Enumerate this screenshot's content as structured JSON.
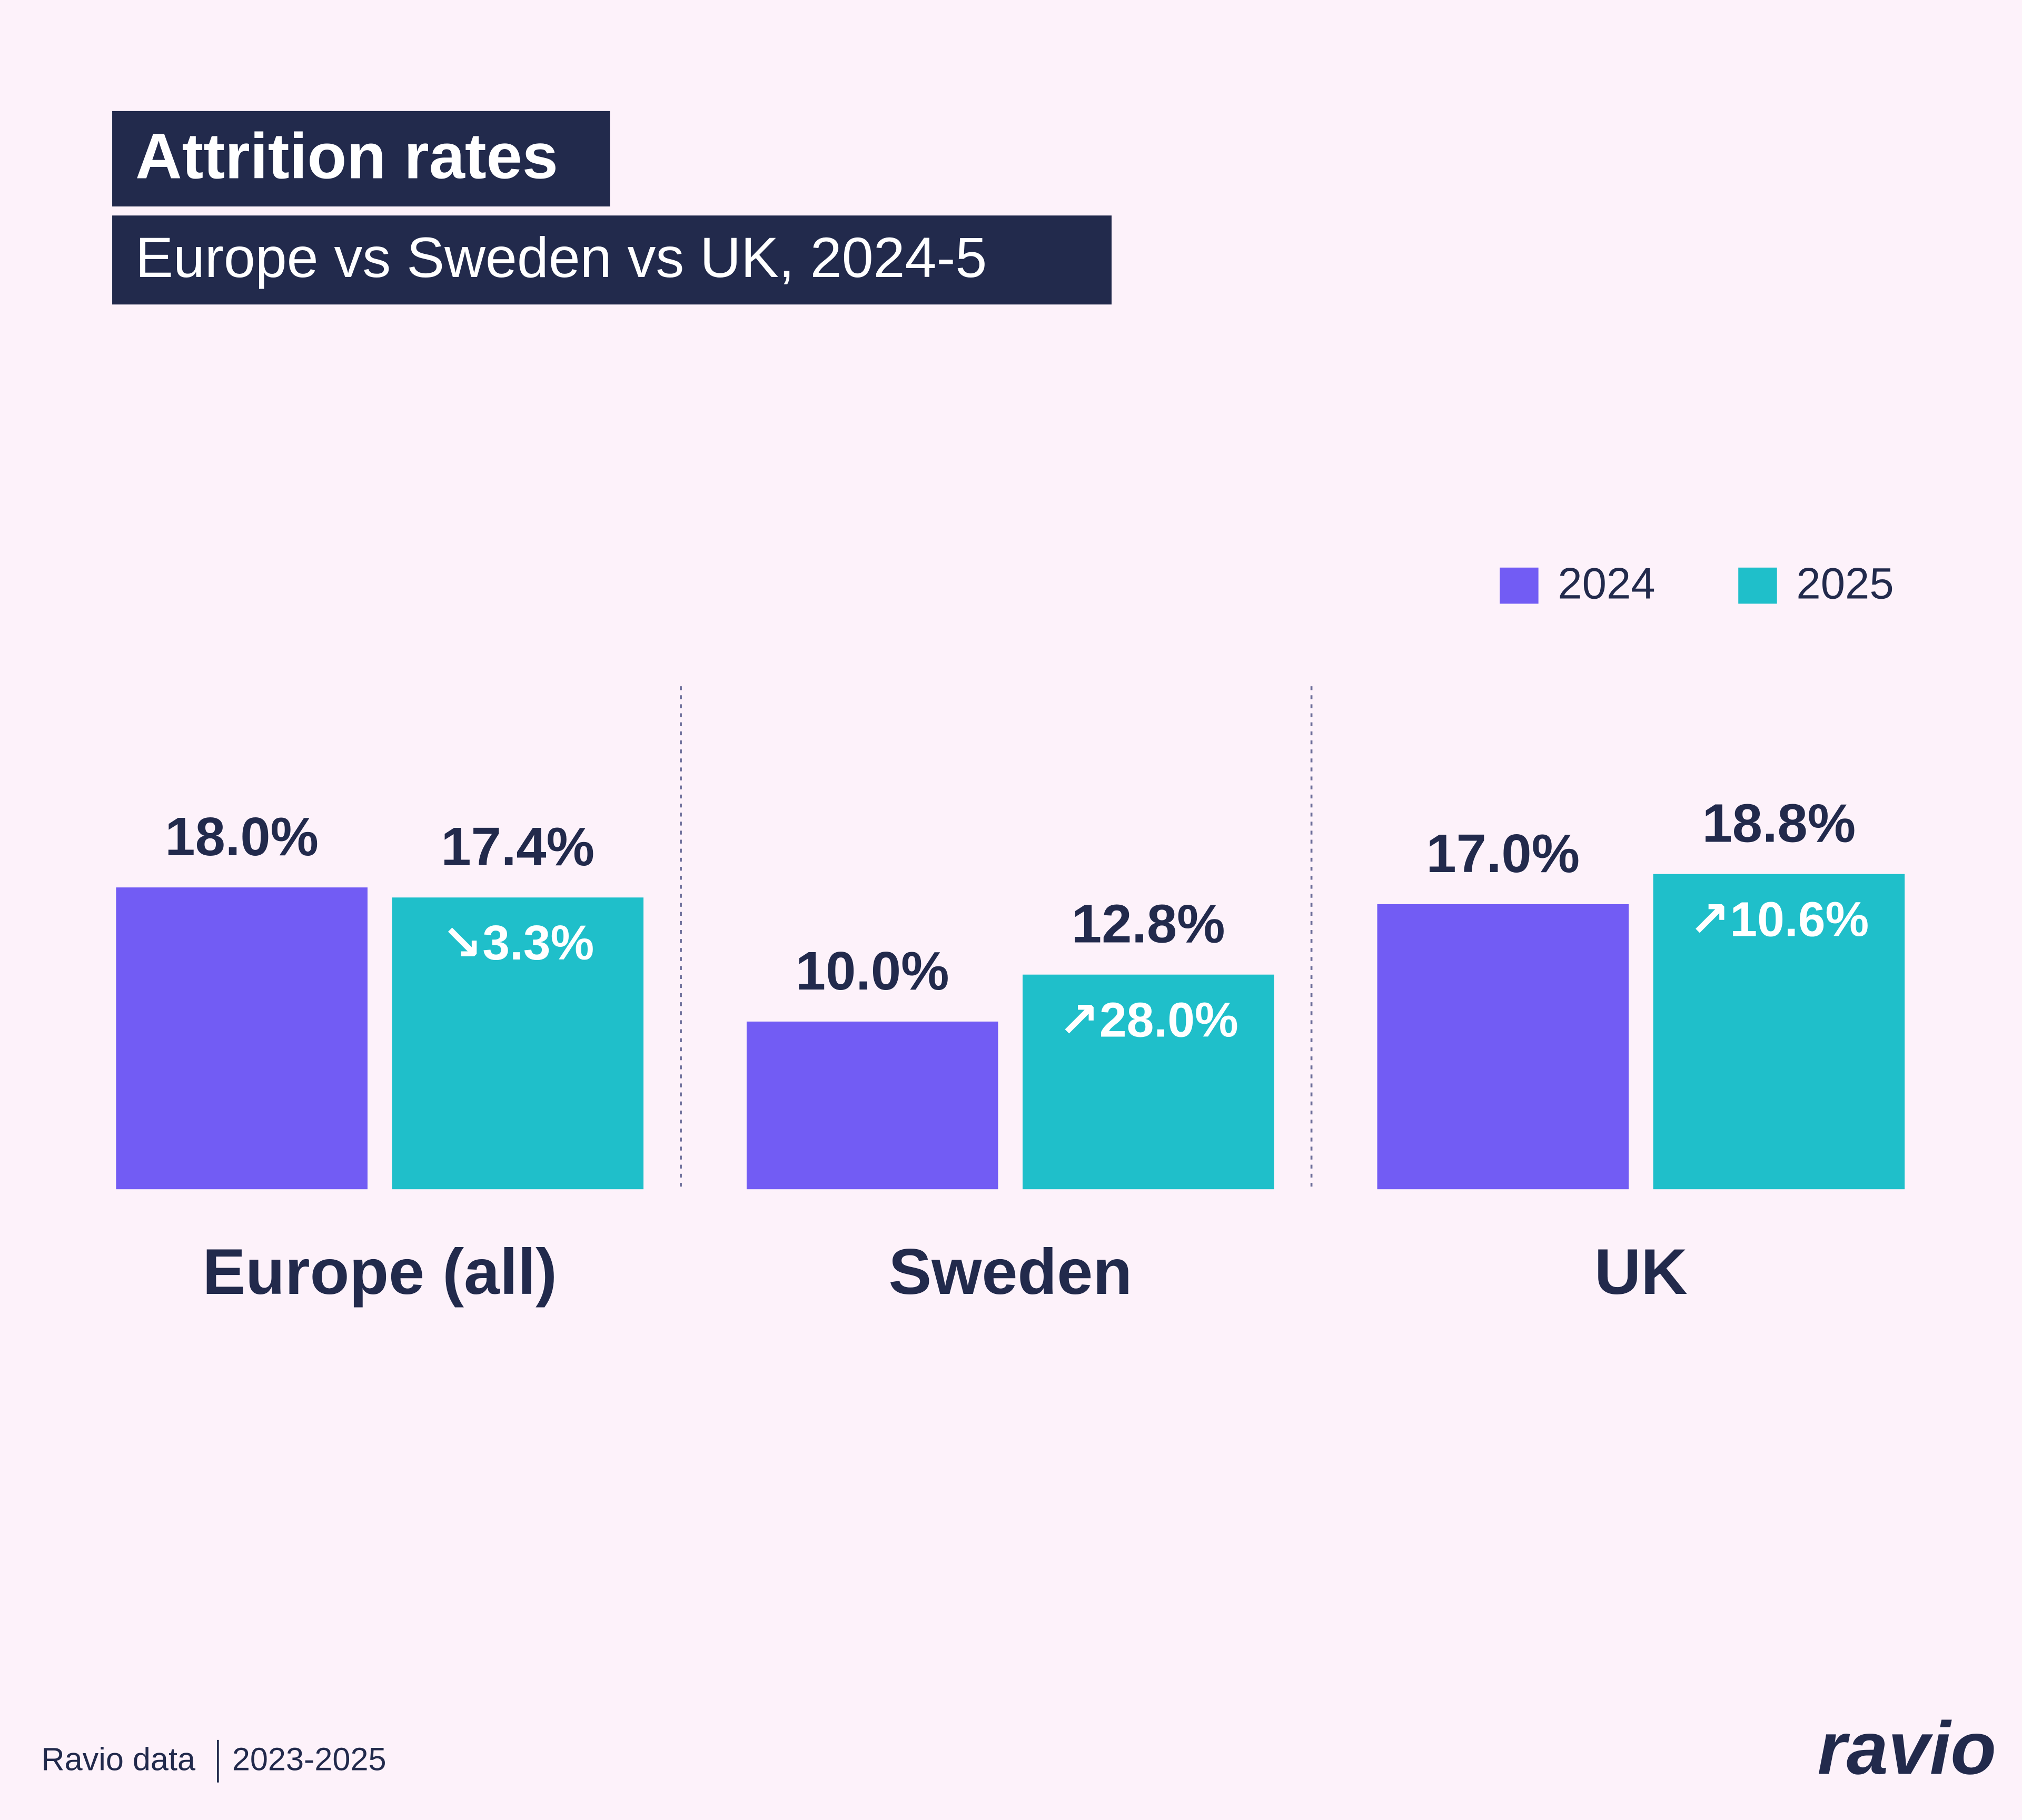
{
  "chart_data": {
    "type": "bar",
    "title": "Attrition rates",
    "subtitle": "Europe vs Sweden vs UK, 2024-5",
    "categories": [
      "Europe (all)",
      "Sweden",
      "UK"
    ],
    "series": [
      {
        "name": "2024",
        "color": "#725cf4",
        "values": [
          18.0,
          10.0,
          17.0
        ],
        "value_labels": [
          "18.0%",
          "10.0%",
          "17.0%"
        ]
      },
      {
        "name": "2025",
        "color": "#1fbfca",
        "values": [
          17.4,
          12.8,
          18.8
        ],
        "value_labels": [
          "17.4%",
          "12.8%",
          "18.8%"
        ],
        "annotations": [
          "↘3.3%",
          "↗28.0%",
          "↗10.6%"
        ]
      }
    ],
    "ylim": [
      0,
      30
    ],
    "legend": "top-right",
    "footer": {
      "source": "Ravio data",
      "years": "2023-2025",
      "logo": "ravio"
    }
  }
}
